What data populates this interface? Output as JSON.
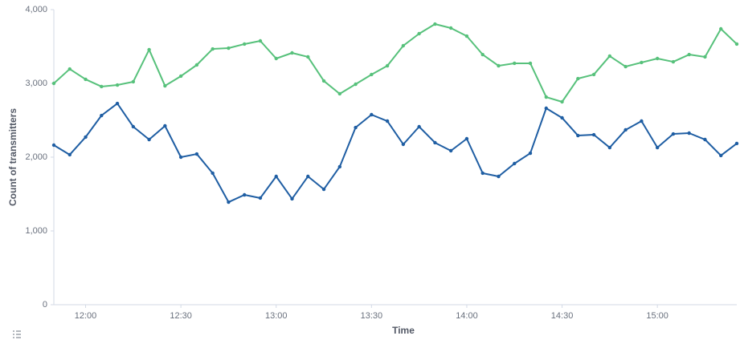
{
  "chart_data": {
    "type": "line",
    "y_label": "Count of transmitters",
    "x_label": "Time",
    "x": [
      710,
      715,
      720,
      725,
      730,
      735,
      740,
      745,
      750,
      755,
      760,
      765,
      770,
      775,
      780,
      785,
      790,
      795,
      800,
      805,
      810,
      815,
      820,
      825,
      830,
      835,
      840,
      845,
      850,
      855,
      860,
      865,
      870,
      875,
      880,
      885,
      890,
      895,
      900,
      905,
      910,
      915,
      920,
      925
    ],
    "series": [
      {
        "color": "#57c17b",
        "values": [
          3000,
          3195,
          3055,
          2957,
          2978,
          3022,
          3457,
          2967,
          3098,
          3250,
          3467,
          3478,
          3533,
          3576,
          3337,
          3413,
          3359,
          3033,
          2859,
          2989,
          3120,
          3239,
          3511,
          3674,
          3804,
          3750,
          3641,
          3391,
          3239,
          3272,
          3272,
          2815,
          2750,
          3065,
          3120,
          3370,
          3228,
          3283,
          3337,
          3293,
          3391,
          3359,
          3739,
          3533
        ]
      },
      {
        "color": "#1f5ea3",
        "values": [
          2163,
          2033,
          2272,
          2565,
          2728,
          2413,
          2239,
          2424,
          2000,
          2043,
          1783,
          1391,
          1489,
          1446,
          1739,
          1435,
          1739,
          1565,
          1870,
          2402,
          2576,
          2489,
          2174,
          2413,
          2196,
          2087,
          2250,
          1783,
          1739,
          1913,
          2054,
          2663,
          2533,
          2293,
          2304,
          2130,
          2370,
          2489,
          2130,
          2315,
          2326,
          2239,
          2022,
          2185
        ]
      }
    ],
    "xlim": [
      710,
      925
    ],
    "xticks": [
      {
        "value": 720,
        "label": "12:00"
      },
      {
        "value": 750,
        "label": "12:30"
      },
      {
        "value": 780,
        "label": "13:00"
      },
      {
        "value": 810,
        "label": "13:30"
      },
      {
        "value": 840,
        "label": "14:00"
      },
      {
        "value": 870,
        "label": "14:30"
      },
      {
        "value": 900,
        "label": "15:00"
      }
    ],
    "ylim": [
      0,
      4000
    ],
    "yticks": [
      0,
      {
        "value": 1000,
        "label": "1,000"
      },
      {
        "value": 2000,
        "label": "2,000"
      },
      {
        "value": 3000,
        "label": "3,000"
      },
      {
        "value": 4000,
        "label": "4,000"
      }
    ],
    "grid": false
  }
}
